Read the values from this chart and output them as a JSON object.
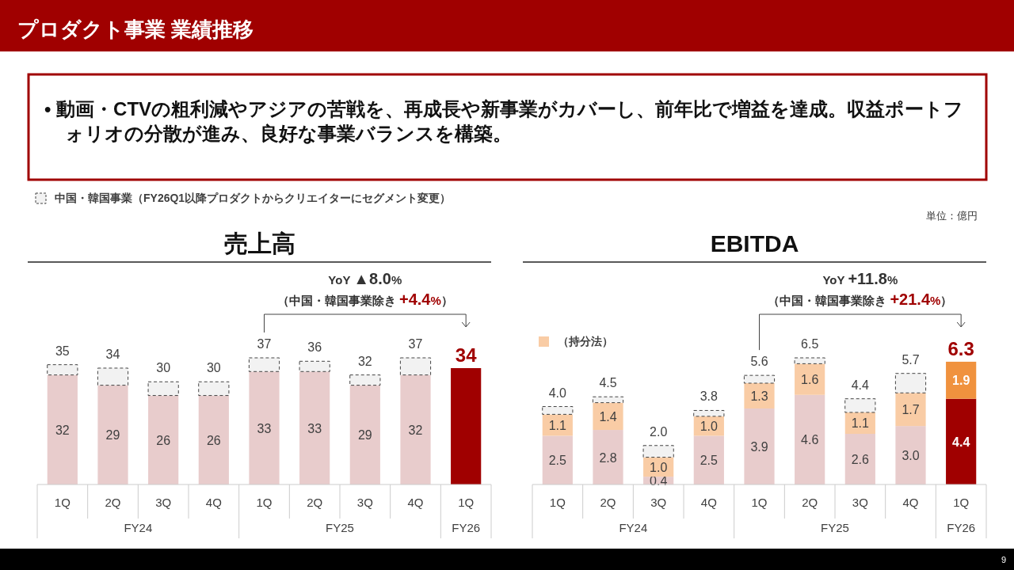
{
  "chart_data": [
    {
      "type": "other",
      "title": "プロダクト事業 業績推移",
      "annotations": [
        "• 動画・CTVの粗利減やアジアの苦戦を、再成長や新事業がカバーし、前年比で増益を達成。収益ポートフォリオの分散が進み、良好な事業バランスを構築。",
        "単位：億円",
        "9"
      ]
    },
    {
      "type": "bar",
      "title": "売上高",
      "stacked": true,
      "legend": "top",
      "categories": [
        "1Q",
        "2Q",
        "3Q",
        "4Q",
        "1Q",
        "2Q",
        "3Q",
        "4Q",
        "1Q"
      ],
      "series": [
        {
          "colors": [
            "#e8cccc",
            "#e8cccc",
            "#e8cccc",
            "#e8cccc",
            "#e8cccc",
            "#e8cccc",
            "#e8cccc",
            "#e8cccc",
            "#a00000"
          ],
          "values": [
            32,
            29,
            26,
            26,
            33,
            33,
            29,
            32,
            34
          ],
          "value_labels": [
            "32",
            "29",
            "26",
            "26",
            "33",
            "33",
            "29",
            "32",
            null
          ]
        },
        {
          "name": "中国・韓国事業（FY26Q1以降プロダクトからクリエイターにセグメント変更）",
          "color": "#f2f2f2",
          "line_style": "dashed",
          "values": [
            3,
            5,
            4,
            4,
            4,
            3,
            3,
            5,
            null
          ]
        }
      ],
      "totals": [
        "35",
        "34",
        "30",
        "30",
        "37",
        "36",
        "32",
        "37",
        "34"
      ],
      "annotations": [
        "YoY ▲8.0%",
        "（中国・韓国事業除き +4.4%）",
        "FY24",
        "FY25",
        "FY26"
      ]
    },
    {
      "type": "bar",
      "title": "EBITDA",
      "stacked": true,
      "legend": "top left",
      "categories": [
        "1Q",
        "2Q",
        "3Q",
        "4Q",
        "1Q",
        "2Q",
        "3Q",
        "4Q",
        "1Q"
      ],
      "series": [
        {
          "colors": [
            "#e8cccc",
            "#e8cccc",
            "#e8cccc",
            "#e8cccc",
            "#e8cccc",
            "#e8cccc",
            "#e8cccc",
            "#e8cccc",
            "#a00000"
          ],
          "values": [
            2.5,
            2.8,
            0.4,
            2.5,
            3.9,
            4.6,
            2.6,
            3.0,
            4.4
          ],
          "value_labels": [
            "2.5",
            "2.8",
            "0.4",
            "2.5",
            "3.9",
            "4.6",
            "2.6",
            "3.0",
            "4.4"
          ]
        },
        {
          "name": "（持分法）",
          "color": "#f9cca5",
          "colors": [
            "#f9cca5",
            "#f9cca5",
            "#f9cca5",
            "#f9cca5",
            "#f9cca5",
            "#f9cca5",
            "#f9cca5",
            "#f9cca5",
            "#f0923e"
          ],
          "values": [
            1.1,
            1.4,
            1.0,
            1.0,
            1.3,
            1.6,
            1.1,
            1.7,
            1.9
          ],
          "value_labels": [
            "1.1",
            "1.4",
            "1.0",
            "1.0",
            "1.3",
            "1.6",
            "1.1",
            "1.7",
            "1.9"
          ]
        },
        {
          "color": "#f2f2f2",
          "line_style": "dashed",
          "values": [
            0.4,
            0.3,
            0.6,
            0.3,
            0.4,
            0.3,
            0.7,
            1.0,
            null
          ]
        }
      ],
      "totals": [
        "4.0",
        "4.5",
        "2.0",
        "3.8",
        "5.6",
        "6.5",
        "4.4",
        "5.7",
        "6.3"
      ],
      "annotations": [
        "YoY +11.8%",
        "（中国・韓国事業除き +21.4%）",
        "FY24",
        "FY25",
        "FY26"
      ]
    }
  ]
}
